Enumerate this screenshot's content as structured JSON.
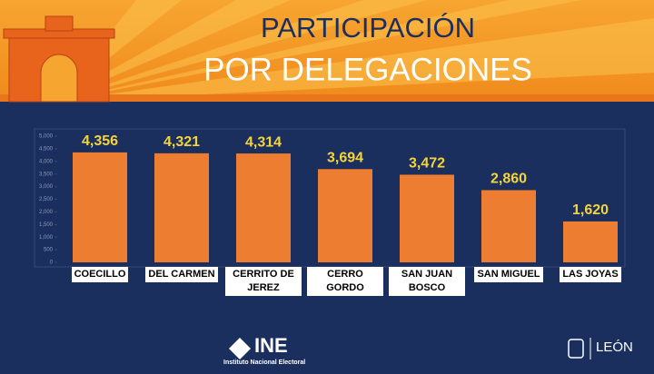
{
  "chart_data": {
    "type": "bar",
    "title": "PARTICIPACIÓN",
    "subtitle": "POR DELEGACIONES",
    "categories": [
      "COECILLO",
      "DEL CARMEN",
      "CERRITO DE JEREZ",
      "CERRO GORDO",
      "SAN JUAN BOSCO",
      "SAN MIGUEL",
      "LAS JOYAS"
    ],
    "values": [
      4356,
      4321,
      4314,
      3694,
      3472,
      2860,
      1620
    ],
    "value_labels": [
      "4,356",
      "4,321",
      "4,314",
      "3,694",
      "3,472",
      "2,860",
      "1,620"
    ],
    "color": "#ed7d31",
    "ylim": [
      0,
      5000
    ],
    "yticks": [
      0,
      500,
      {
        "value": 1000,
        "label": "1,000"
      },
      {
        "value": 1500,
        "label": "1,500"
      },
      {
        "value": 2000,
        "label": "2,000"
      },
      {
        "value": 2500,
        "label": "2,500"
      },
      {
        "value": 3000,
        "label": "3,000"
      },
      {
        "value": 3500,
        "label": "3,500"
      },
      {
        "value": 4000,
        "label": "4,000"
      },
      {
        "value": 4500,
        "label": "4,500"
      },
      {
        "value": 5000,
        "label": "5,000"
      }
    ],
    "grid": false
  },
  "footer": {
    "ine": "INE",
    "ine_name": "Instituto Nacional Electoral",
    "city": "LEÓN"
  }
}
